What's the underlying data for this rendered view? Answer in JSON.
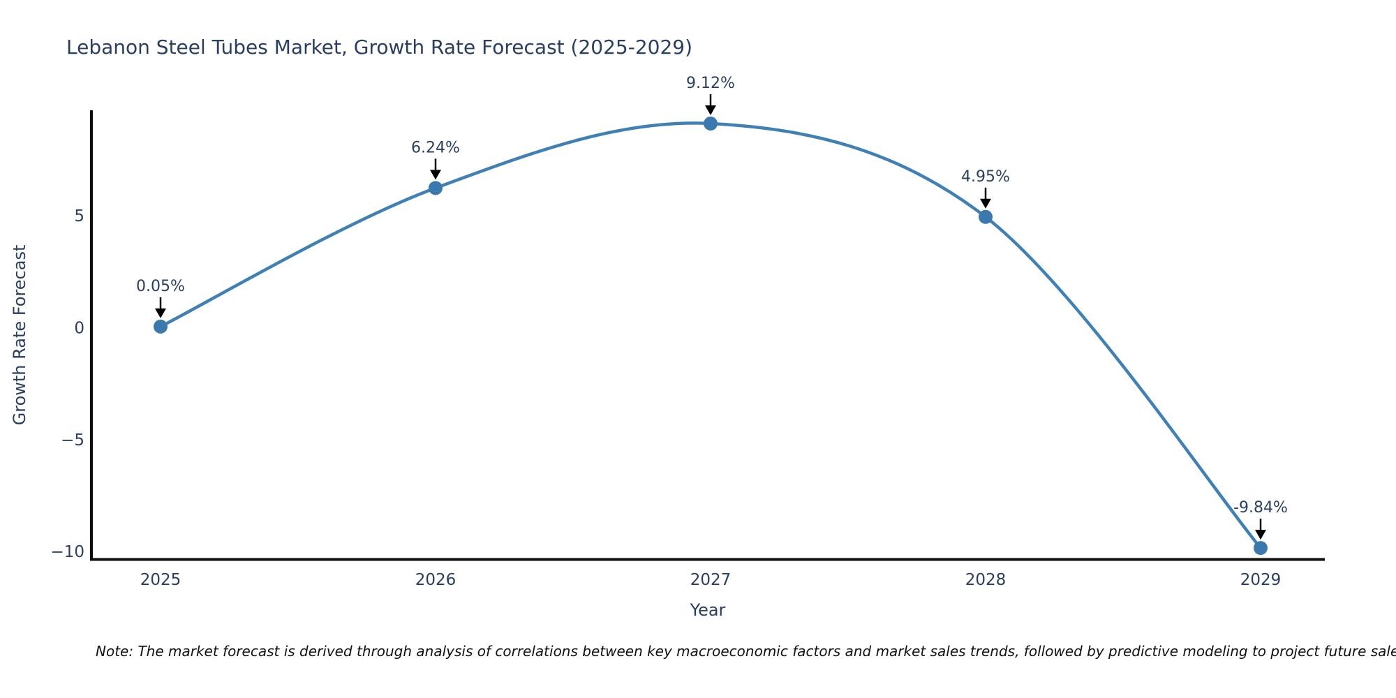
{
  "note": "Note: The market forecast is derived through analysis of correlations between key macroeconomic factors and market sales trends, followed by predictive modeling to project future sales",
  "chart_data": {
    "type": "line",
    "title": "Lebanon Steel Tubes Market, Growth Rate Forecast (2025-2029)",
    "xlabel": "Year",
    "ylabel": "Growth Rate Forecast",
    "x": [
      2025,
      2026,
      2027,
      2028,
      2029
    ],
    "values": [
      0.05,
      6.24,
      9.12,
      4.95,
      -9.84
    ],
    "point_labels": [
      "0.05%",
      "6.24%",
      "9.12%",
      "4.95%",
      "-9.84%"
    ],
    "xticks": [
      "2025",
      "2026",
      "2027",
      "2028",
      "2029"
    ],
    "yticks": [
      5,
      0,
      -5,
      -10
    ],
    "ylim": [
      -10.4,
      9.7
    ],
    "line_shape": "spline",
    "grid": false,
    "legend": "none",
    "colors": {
      "line": "#4080b4",
      "marker": "#3a78ae",
      "arrow": "#000000",
      "axis": "#0e0e0e",
      "text": "#2a3f5f",
      "note_text": "#111111",
      "background": "#ffffff"
    }
  }
}
